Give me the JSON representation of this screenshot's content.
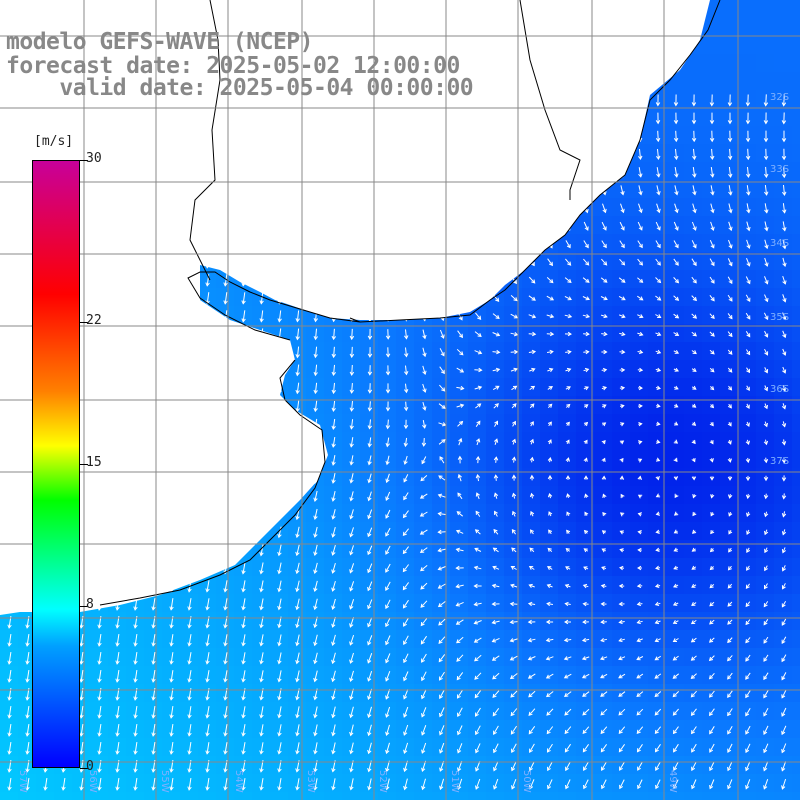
{
  "title": {
    "line1": "modelo GEFS-WAVE (NCEP)",
    "line2": "forecast date: 2025-05-02 12:00:00",
    "line3": "    valid date: 2025-05-04 00:00:00"
  },
  "colorbar": {
    "unit": "[m/s]",
    "ticks": [
      "30",
      "22",
      "15",
      "8",
      "0"
    ],
    "tick_values": [
      30,
      22,
      15,
      8,
      0
    ],
    "min": 0,
    "max": 30,
    "colors": [
      "#0000ff",
      "#00a0ff",
      "#00ffff",
      "#00ff00",
      "#ffff00",
      "#ff8000",
      "#ff0000",
      "#c8009a"
    ]
  },
  "map": {
    "ocean_low_color": "#0018e8",
    "ocean_mid_color": "#0a78ff",
    "ocean_high_color": "#00d8ff",
    "land_color": "#ffffff",
    "grid_color": "#888888",
    "vector_color": "#ffffff",
    "lat_labels": [
      "32S",
      "33S",
      "34S",
      "35S",
      "36S",
      "37S"
    ],
    "lon_labels": [
      "57W",
      "56W",
      "55W",
      "54W",
      "53W",
      "52W",
      "51W",
      "50W",
      "49W"
    ]
  }
}
